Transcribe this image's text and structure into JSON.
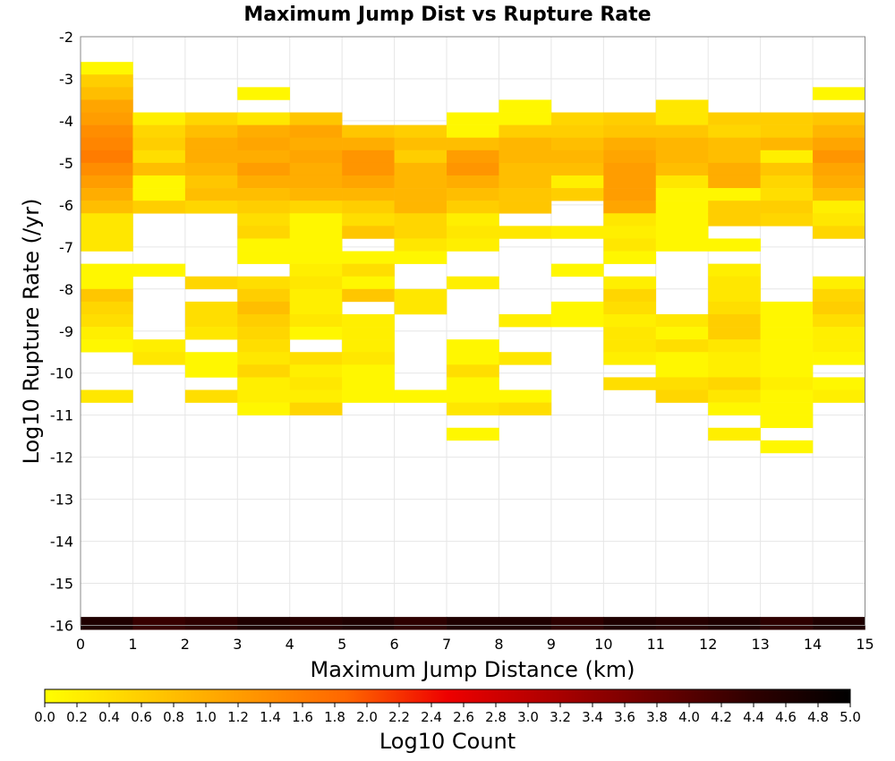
{
  "chart_data": {
    "type": "heatmap",
    "title": "Maximum Jump Dist vs Rupture Rate",
    "xlabel": "Maximum Jump Distance (km)",
    "ylabel": "Log10 Rupture Rate (/yr)",
    "xlim": [
      0,
      15
    ],
    "ylim": [
      -16,
      -2
    ],
    "x_ticks": [
      "0",
      "1",
      "2",
      "3",
      "4",
      "5",
      "6",
      "7",
      "8",
      "9",
      "10",
      "11",
      "12",
      "13",
      "14",
      "15"
    ],
    "y_ticks": [
      "-2",
      "-3",
      "-4",
      "-5",
      "-6",
      "-7",
      "-8",
      "-9",
      "-10",
      "-11",
      "-12",
      "-13",
      "-14",
      "-15",
      "-16"
    ],
    "x_bin_width": 1,
    "y_bin_height": 0.3,
    "colorbar": {
      "label": "Log10 Count",
      "min": 0.0,
      "max": 5.0,
      "ticks": [
        "0.0",
        "0.2",
        "0.4",
        "0.6",
        "0.8",
        "1.0",
        "1.2",
        "1.4",
        "1.6",
        "1.8",
        "2.0",
        "2.2",
        "2.4",
        "2.6",
        "2.8",
        "3.0",
        "3.2",
        "3.4",
        "3.6",
        "3.8",
        "4.0",
        "4.2",
        "4.4",
        "4.6",
        "4.8",
        "5.0"
      ],
      "colors": [
        "#ffff00",
        "#ffcc00",
        "#ff9900",
        "#ff6600",
        "#ee0000",
        "#b00000",
        "#700000",
        "#300000",
        "#000000"
      ]
    },
    "grid": true,
    "columns": [
      {
        "x": 0,
        "cells": [
          [
            -2.6,
            0.1
          ],
          [
            -2.9,
            0.6
          ],
          [
            -3.2,
            0.8
          ],
          [
            -3.5,
            1.1
          ],
          [
            -3.8,
            1.2
          ],
          [
            -4.1,
            1.4
          ],
          [
            -4.4,
            1.5
          ],
          [
            -4.7,
            1.6
          ],
          [
            -5.0,
            1.4
          ],
          [
            -5.3,
            1.2
          ],
          [
            -5.6,
            1.0
          ],
          [
            -5.9,
            0.8
          ],
          [
            -6.2,
            0.3
          ],
          [
            -6.5,
            0.3
          ],
          [
            -6.8,
            0.3
          ],
          [
            -7.4,
            0.1
          ],
          [
            -7.7,
            0.1
          ],
          [
            -8.0,
            0.7
          ],
          [
            -8.3,
            0.5
          ],
          [
            -8.6,
            0.4
          ],
          [
            -8.9,
            0.2
          ],
          [
            -9.2,
            0.1
          ],
          [
            -10.4,
            0.3
          ],
          [
            -15.8,
            4.6
          ]
        ]
      },
      {
        "x": 1,
        "cells": [
          [
            -3.8,
            0.2
          ],
          [
            -4.1,
            0.5
          ],
          [
            -4.4,
            0.6
          ],
          [
            -4.7,
            0.4
          ],
          [
            -5.0,
            0.8
          ],
          [
            -5.3,
            0.1
          ],
          [
            -5.6,
            0.1
          ],
          [
            -5.9,
            0.6
          ],
          [
            -7.4,
            0.1
          ],
          [
            -9.2,
            0.2
          ],
          [
            -9.5,
            0.3
          ],
          [
            -15.8,
            4.3
          ]
        ]
      },
      {
        "x": 2,
        "cells": [
          [
            -3.8,
            0.5
          ],
          [
            -4.1,
            0.8
          ],
          [
            -4.4,
            1.0
          ],
          [
            -4.7,
            1.0
          ],
          [
            -5.0,
            0.9
          ],
          [
            -5.3,
            0.7
          ],
          [
            -5.6,
            0.8
          ],
          [
            -5.9,
            0.5
          ],
          [
            -7.7,
            0.5
          ],
          [
            -8.3,
            0.4
          ],
          [
            -8.6,
            0.4
          ],
          [
            -8.9,
            0.3
          ],
          [
            -9.5,
            0.1
          ],
          [
            -9.8,
            0.1
          ],
          [
            -10.4,
            0.4
          ],
          [
            -15.8,
            4.4
          ]
        ]
      },
      {
        "x": 3,
        "cells": [
          [
            -3.2,
            0.1
          ],
          [
            -3.8,
            0.3
          ],
          [
            -4.1,
            1.0
          ],
          [
            -4.4,
            1.1
          ],
          [
            -4.7,
            1.0
          ],
          [
            -5.0,
            1.2
          ],
          [
            -5.3,
            1.0
          ],
          [
            -5.6,
            0.8
          ],
          [
            -5.9,
            0.6
          ],
          [
            -6.2,
            0.4
          ],
          [
            -6.5,
            0.5
          ],
          [
            -6.8,
            0.1
          ],
          [
            -7.1,
            0.1
          ],
          [
            -7.7,
            0.4
          ],
          [
            -8.0,
            0.6
          ],
          [
            -8.3,
            0.8
          ],
          [
            -8.6,
            0.6
          ],
          [
            -8.9,
            0.5
          ],
          [
            -9.2,
            0.4
          ],
          [
            -9.5,
            0.3
          ],
          [
            -9.8,
            0.5
          ],
          [
            -10.1,
            0.2
          ],
          [
            -10.4,
            0.2
          ],
          [
            -10.7,
            0.1
          ],
          [
            -15.8,
            4.6
          ]
        ]
      },
      {
        "x": 4,
        "cells": [
          [
            -3.8,
            0.7
          ],
          [
            -4.1,
            1.1
          ],
          [
            -4.4,
            1.0
          ],
          [
            -4.7,
            1.1
          ],
          [
            -5.0,
            1.0
          ],
          [
            -5.3,
            1.0
          ],
          [
            -5.6,
            0.9
          ],
          [
            -5.9,
            0.5
          ],
          [
            -6.2,
            0.1
          ],
          [
            -6.5,
            0.1
          ],
          [
            -6.8,
            0.1
          ],
          [
            -7.1,
            0.1
          ],
          [
            -7.4,
            0.2
          ],
          [
            -7.7,
            0.3
          ],
          [
            -8.0,
            0.2
          ],
          [
            -8.3,
            0.2
          ],
          [
            -8.6,
            0.3
          ],
          [
            -8.9,
            0.1
          ],
          [
            -9.5,
            0.4
          ],
          [
            -9.8,
            0.2
          ],
          [
            -10.1,
            0.3
          ],
          [
            -10.4,
            0.2
          ],
          [
            -10.7,
            0.5
          ],
          [
            -15.8,
            4.5
          ]
        ]
      },
      {
        "x": 5,
        "cells": [
          [
            -4.1,
            0.7
          ],
          [
            -4.4,
            1.0
          ],
          [
            -4.7,
            1.3
          ],
          [
            -5.0,
            1.3
          ],
          [
            -5.3,
            1.1
          ],
          [
            -5.6,
            0.9
          ],
          [
            -5.9,
            0.6
          ],
          [
            -6.2,
            0.4
          ],
          [
            -6.5,
            0.7
          ],
          [
            -7.1,
            0.1
          ],
          [
            -7.4,
            0.4
          ],
          [
            -7.7,
            0.1
          ],
          [
            -8.0,
            0.7
          ],
          [
            -8.6,
            0.2
          ],
          [
            -8.9,
            0.2
          ],
          [
            -9.2,
            0.2
          ],
          [
            -9.5,
            0.3
          ],
          [
            -9.8,
            0.1
          ],
          [
            -10.1,
            0.1
          ],
          [
            -10.4,
            0.1
          ],
          [
            -15.8,
            4.6
          ]
        ]
      },
      {
        "x": 6,
        "cells": [
          [
            -4.1,
            0.6
          ],
          [
            -4.4,
            0.8
          ],
          [
            -4.7,
            0.6
          ],
          [
            -5.0,
            0.9
          ],
          [
            -5.3,
            0.9
          ],
          [
            -5.6,
            0.9
          ],
          [
            -5.9,
            0.9
          ],
          [
            -6.2,
            0.5
          ],
          [
            -6.5,
            0.5
          ],
          [
            -6.8,
            0.3
          ],
          [
            -7.1,
            0.1
          ],
          [
            -8.0,
            0.3
          ],
          [
            -8.3,
            0.3
          ],
          [
            -10.4,
            0.1
          ],
          [
            -15.8,
            4.4
          ]
        ]
      },
      {
        "x": 7,
        "cells": [
          [
            -3.8,
            0.1
          ],
          [
            -4.1,
            0.1
          ],
          [
            -4.4,
            0.8
          ],
          [
            -4.7,
            1.2
          ],
          [
            -5.0,
            1.3
          ],
          [
            -5.3,
            1.0
          ],
          [
            -5.6,
            0.8
          ],
          [
            -5.9,
            0.6
          ],
          [
            -6.2,
            0.2
          ],
          [
            -6.5,
            0.3
          ],
          [
            -6.8,
            0.2
          ],
          [
            -7.7,
            0.2
          ],
          [
            -9.2,
            0.1
          ],
          [
            -9.5,
            0.1
          ],
          [
            -9.8,
            0.4
          ],
          [
            -10.1,
            0.1
          ],
          [
            -10.4,
            0.1
          ],
          [
            -10.7,
            0.3
          ],
          [
            -11.3,
            0.1
          ],
          [
            -15.8,
            4.6
          ]
        ]
      },
      {
        "x": 8,
        "cells": [
          [
            -3.5,
            0.1
          ],
          [
            -3.8,
            0.1
          ],
          [
            -4.1,
            0.6
          ],
          [
            -4.4,
            0.9
          ],
          [
            -4.7,
            0.9
          ],
          [
            -5.0,
            0.8
          ],
          [
            -5.3,
            0.8
          ],
          [
            -5.6,
            0.7
          ],
          [
            -5.9,
            0.7
          ],
          [
            -6.5,
            0.3
          ],
          [
            -8.6,
            0.2
          ],
          [
            -9.5,
            0.3
          ],
          [
            -10.4,
            0.1
          ],
          [
            -10.7,
            0.4
          ],
          [
            -15.8,
            4.6
          ]
        ]
      },
      {
        "x": 9,
        "cells": [
          [
            -3.8,
            0.5
          ],
          [
            -4.1,
            0.6
          ],
          [
            -4.4,
            0.8
          ],
          [
            -4.7,
            0.9
          ],
          [
            -5.0,
            0.8
          ],
          [
            -5.3,
            0.2
          ],
          [
            -5.6,
            0.6
          ],
          [
            -6.5,
            0.2
          ],
          [
            -7.4,
            0.1
          ],
          [
            -8.3,
            0.1
          ],
          [
            -8.6,
            0.1
          ],
          [
            -15.8,
            4.4
          ]
        ]
      },
      {
        "x": 10,
        "cells": [
          [
            -3.8,
            0.6
          ],
          [
            -4.1,
            0.7
          ],
          [
            -4.4,
            1.0
          ],
          [
            -4.7,
            1.1
          ],
          [
            -5.0,
            1.2
          ],
          [
            -5.3,
            1.2
          ],
          [
            -5.6,
            1.2
          ],
          [
            -5.9,
            1.1
          ],
          [
            -6.2,
            0.3
          ],
          [
            -6.5,
            0.2
          ],
          [
            -6.8,
            0.3
          ],
          [
            -7.1,
            0.1
          ],
          [
            -7.7,
            0.2
          ],
          [
            -8.0,
            0.5
          ],
          [
            -8.3,
            0.4
          ],
          [
            -8.6,
            0.2
          ],
          [
            -8.9,
            0.3
          ],
          [
            -9.2,
            0.3
          ],
          [
            -9.5,
            0.2
          ],
          [
            -10.1,
            0.4
          ],
          [
            -15.8,
            4.6
          ]
        ]
      },
      {
        "x": 11,
        "cells": [
          [
            -3.5,
            0.3
          ],
          [
            -3.8,
            0.3
          ],
          [
            -4.1,
            0.7
          ],
          [
            -4.4,
            0.9
          ],
          [
            -4.7,
            0.9
          ],
          [
            -5.0,
            0.8
          ],
          [
            -5.3,
            0.3
          ],
          [
            -5.6,
            0.1
          ],
          [
            -5.9,
            0.1
          ],
          [
            -6.2,
            0.1
          ],
          [
            -6.5,
            0.1
          ],
          [
            -6.8,
            0.1
          ],
          [
            -8.6,
            0.3
          ],
          [
            -8.9,
            0.1
          ],
          [
            -9.2,
            0.4
          ],
          [
            -9.5,
            0.1
          ],
          [
            -9.8,
            0.1
          ],
          [
            -10.1,
            0.4
          ],
          [
            -10.4,
            0.5
          ],
          [
            -15.8,
            4.5
          ]
        ]
      },
      {
        "x": 12,
        "cells": [
          [
            -3.8,
            0.6
          ],
          [
            -4.1,
            0.5
          ],
          [
            -4.4,
            0.8
          ],
          [
            -4.7,
            0.8
          ],
          [
            -5.0,
            1.0
          ],
          [
            -5.3,
            1.0
          ],
          [
            -5.6,
            0.1
          ],
          [
            -5.9,
            0.6
          ],
          [
            -6.2,
            0.6
          ],
          [
            -6.8,
            0.1
          ],
          [
            -7.4,
            0.2
          ],
          [
            -7.7,
            0.3
          ],
          [
            -8.0,
            0.3
          ],
          [
            -8.3,
            0.4
          ],
          [
            -8.6,
            0.6
          ],
          [
            -8.9,
            0.6
          ],
          [
            -9.2,
            0.3
          ],
          [
            -9.5,
            0.2
          ],
          [
            -9.8,
            0.2
          ],
          [
            -10.1,
            0.5
          ],
          [
            -10.4,
            0.3
          ],
          [
            -10.7,
            0.1
          ],
          [
            -11.3,
            0.2
          ],
          [
            -15.8,
            4.6
          ]
        ]
      },
      {
        "x": 13,
        "cells": [
          [
            -3.8,
            0.6
          ],
          [
            -4.1,
            0.6
          ],
          [
            -4.4,
            0.9
          ],
          [
            -4.7,
            0.2
          ],
          [
            -5.0,
            0.7
          ],
          [
            -5.3,
            0.5
          ],
          [
            -5.6,
            0.4
          ],
          [
            -5.9,
            0.6
          ],
          [
            -6.2,
            0.5
          ],
          [
            -8.3,
            0.1
          ],
          [
            -8.6,
            0.1
          ],
          [
            -8.9,
            0.1
          ],
          [
            -9.2,
            0.1
          ],
          [
            -9.5,
            0.1
          ],
          [
            -9.8,
            0.1
          ],
          [
            -10.1,
            0.2
          ],
          [
            -10.4,
            0.1
          ],
          [
            -10.7,
            0.1
          ],
          [
            -11.0,
            0.1
          ],
          [
            -11.6,
            0.1
          ],
          [
            -15.8,
            4.4
          ]
        ]
      },
      {
        "x": 14,
        "cells": [
          [
            -3.2,
            0.1
          ],
          [
            -3.8,
            0.7
          ],
          [
            -4.1,
            0.9
          ],
          [
            -4.4,
            1.1
          ],
          [
            -4.7,
            1.3
          ],
          [
            -5.0,
            1.1
          ],
          [
            -5.3,
            1.0
          ],
          [
            -5.6,
            0.8
          ],
          [
            -5.9,
            0.2
          ],
          [
            -6.2,
            0.3
          ],
          [
            -6.5,
            0.5
          ],
          [
            -7.7,
            0.2
          ],
          [
            -8.0,
            0.5
          ],
          [
            -8.3,
            0.6
          ],
          [
            -8.6,
            0.4
          ],
          [
            -8.9,
            0.2
          ],
          [
            -9.2,
            0.2
          ],
          [
            -9.5,
            0.1
          ],
          [
            -10.1,
            0.1
          ],
          [
            -10.4,
            0.2
          ],
          [
            -15.8,
            4.6
          ]
        ]
      }
    ]
  }
}
